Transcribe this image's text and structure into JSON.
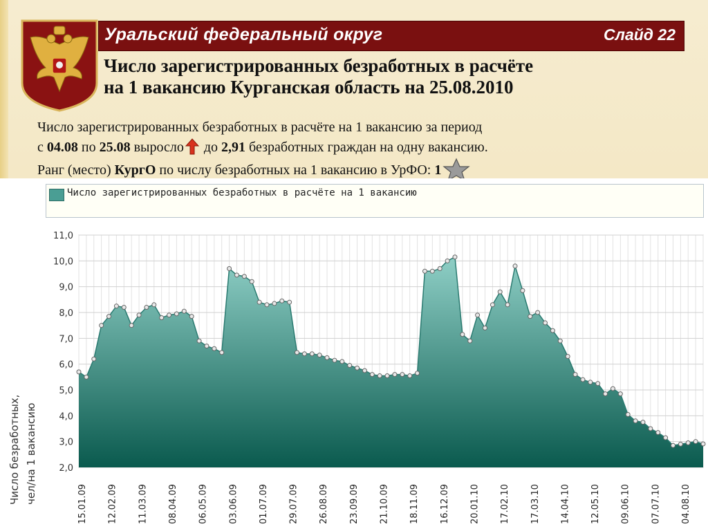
{
  "header": {
    "region": "Уральский федеральный округ",
    "slide": "Слайд 22",
    "headline_line1": "Число зарегистрированных безработных в расчёте",
    "headline_line2": "на 1 вакансию Курганская область на 25.08.2010"
  },
  "description": {
    "line1": "Число зарегистрированных безработных в расчёте на 1 вакансию за период",
    "line2_pre": "с ",
    "date_from": "04.08",
    "line2_mid1": " по ",
    "date_to": "25.08",
    "line2_mid2": " выросло",
    "line2_mid3": " до ",
    "value": "2,91",
    "line2_post": " безработных граждан на одну вакансию.",
    "line3_pre": "Ранг (место) ",
    "region_short": "КургО",
    "line3_mid": " по числу безработных на 1 вакансию в УрФО: ",
    "rank": "1"
  },
  "colors": {
    "title_bar": "#7a1010",
    "area_top": "#8fcfc6",
    "area_bottom": "#0a5a4e",
    "line": "#2a7a70"
  },
  "icons": [
    "double-headed-eagle-emblem",
    "red-up-arrow-icon",
    "silver-star-icon"
  ],
  "chart_data": {
    "type": "area",
    "legend": "Число зарегистрированных безработных в расчёте на 1 вакансию",
    "legend_placement": "top",
    "ylabel_line1": "Число безработных,",
    "ylabel_line2": "чел/на 1 вакансию",
    "ylim": [
      2.0,
      11.0
    ],
    "yticks": [
      "2,0",
      "3,0",
      "4,0",
      "5,0",
      "6,0",
      "7,0",
      "8,0",
      "9,0",
      "10,0",
      "11,0"
    ],
    "xtick_labels": [
      "15.01.09",
      "12.02.09",
      "11.03.09",
      "08.04.09",
      "06.05.09",
      "03.06.09",
      "01.07.09",
      "29.07.09",
      "26.08.09",
      "23.09.09",
      "21.10.09",
      "18.11.09",
      "16.12.09",
      "20.01.10",
      "17.02.10",
      "17.03.10",
      "14.04.10",
      "12.05.10",
      "09.06.10",
      "07.07.10",
      "04.08.10"
    ],
    "grid": true,
    "values": [
      5.7,
      5.5,
      6.2,
      7.5,
      7.85,
      8.25,
      8.2,
      7.5,
      7.9,
      8.2,
      8.3,
      7.8,
      7.9,
      7.95,
      8.05,
      7.85,
      6.9,
      6.7,
      6.6,
      6.45,
      9.7,
      9.45,
      9.4,
      9.2,
      8.4,
      8.3,
      8.35,
      8.45,
      8.4,
      6.45,
      6.4,
      6.4,
      6.35,
      6.25,
      6.15,
      6.1,
      5.95,
      5.85,
      5.75,
      5.6,
      5.55,
      5.55,
      5.6,
      5.6,
      5.55,
      5.65,
      9.6,
      9.6,
      9.7,
      10.0,
      10.15,
      7.15,
      6.9,
      7.9,
      7.4,
      8.3,
      8.8,
      8.3,
      9.8,
      8.85,
      7.85,
      8.0,
      7.6,
      7.3,
      6.9,
      6.3,
      5.6,
      5.4,
      5.3,
      5.25,
      4.85,
      5.05,
      4.85,
      4.05,
      3.8,
      3.75,
      3.5,
      3.35,
      3.15,
      2.85,
      2.9,
      2.95,
      3.0,
      2.91
    ]
  }
}
